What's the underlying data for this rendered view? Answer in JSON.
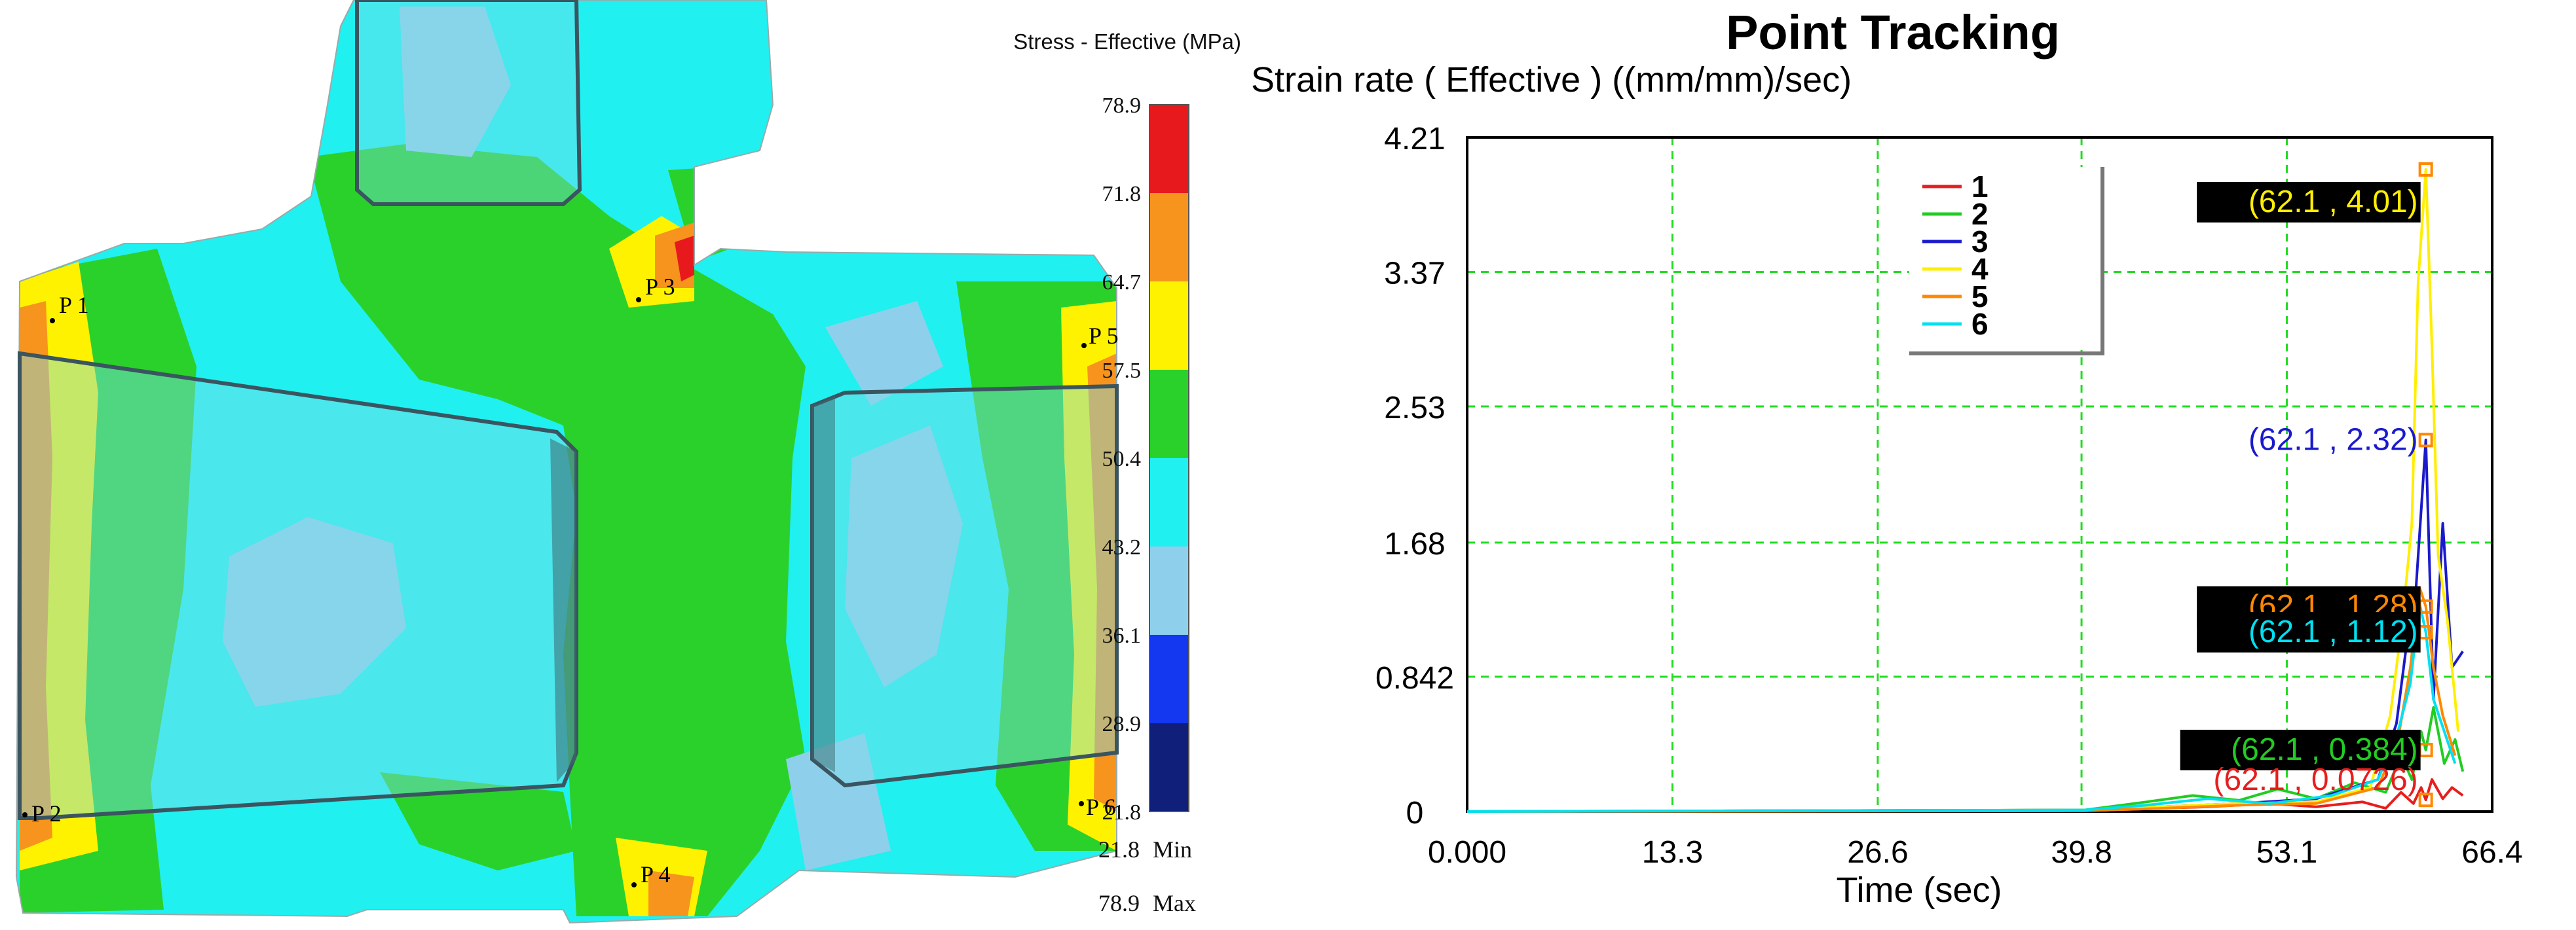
{
  "stress_map": {
    "points": [
      "P 1",
      "P 2",
      "P 3",
      "P 4",
      "P 5",
      "P 6"
    ],
    "legend": {
      "title": "Stress - Effective (MPa)",
      "ticks": [
        "78.9",
        "71.8",
        "64.7",
        "57.5",
        "50.4",
        "43.2",
        "36.1",
        "28.9",
        "21.8"
      ],
      "bands": [
        "#e8191c",
        "#f7941d",
        "#fff200",
        "#2bd12b",
        "#20f0f0",
        "#8ed0ec",
        "#1437f0",
        "#10207a"
      ],
      "min_value": "21.8",
      "min_label": "Min",
      "max_value": "78.9",
      "max_label": "Max"
    }
  },
  "chart_data": {
    "type": "line",
    "title": "Point Tracking",
    "ylabel": "Strain rate ( Effective )  ((mm/mm)/sec)",
    "xlabel": "Time (sec)",
    "xlim": [
      0,
      66.4
    ],
    "ylim": [
      0,
      4.21
    ],
    "xticks": [
      "0.000",
      "13.3",
      "26.6",
      "39.8",
      "53.1",
      "66.4"
    ],
    "xtick_values": [
      0,
      13.3,
      26.6,
      39.8,
      53.1,
      66.4
    ],
    "yticks": [
      "0",
      "0.842",
      "1.68",
      "2.53",
      "3.37",
      "4.21"
    ],
    "ytick_values": [
      0,
      0.842,
      1.68,
      2.53,
      3.37,
      4.21
    ],
    "grid": true,
    "legend_position": "top-center",
    "series": [
      {
        "name": "1",
        "color": "#e61e1e",
        "x": [
          0,
          40,
          45,
          48,
          52,
          55,
          58,
          59.5,
          60.5,
          61.3,
          61.8,
          62.1,
          62.5,
          63.2,
          63.8,
          64.5
        ],
        "y": [
          0,
          0.005,
          0.02,
          0.03,
          0.05,
          0.03,
          0.06,
          0.02,
          0.12,
          0.05,
          0.15,
          0.0726,
          0.2,
          0.08,
          0.15,
          0.1
        ]
      },
      {
        "name": "2",
        "color": "#22cc22",
        "x": [
          0,
          40,
          44,
          47,
          50,
          52.5,
          55,
          57.5,
          59.5,
          60.5,
          61.2,
          61.8,
          62.1,
          62.6,
          63.3,
          64,
          64.5
        ],
        "y": [
          0,
          0.01,
          0.06,
          0.1,
          0.07,
          0.14,
          0.08,
          0.18,
          0.12,
          0.35,
          0.2,
          0.5,
          0.384,
          0.65,
          0.3,
          0.45,
          0.25
        ]
      },
      {
        "name": "3",
        "color": "#1a1acc",
        "x": [
          0,
          40,
          45,
          50,
          55,
          59,
          60.2,
          60.8,
          61.4,
          62.1,
          62.6,
          63.2,
          63.8,
          64.5
        ],
        "y": [
          0,
          0.01,
          0.03,
          0.05,
          0.08,
          0.2,
          0.55,
          1.0,
          1.3,
          2.32,
          0.7,
          1.8,
          0.9,
          1.0
        ]
      },
      {
        "name": "4",
        "color": "#ffee00",
        "x": [
          0,
          40,
          45,
          50,
          55,
          58.5,
          59.8,
          60.6,
          61.2,
          61.6,
          62.1,
          62.5,
          62.9,
          63.5,
          64.2
        ],
        "y": [
          0,
          0.01,
          0.03,
          0.05,
          0.06,
          0.15,
          0.6,
          1.2,
          1.8,
          3.3,
          4.01,
          2.9,
          1.6,
          1.2,
          0.5
        ]
      },
      {
        "name": "5",
        "color": "#ff8800",
        "x": [
          0,
          40,
          45,
          50,
          55,
          59,
          60.3,
          61.1,
          61.7,
          62.1,
          62.6,
          63.2,
          64.0
        ],
        "y": [
          0,
          0.005,
          0.02,
          0.04,
          0.05,
          0.15,
          0.45,
          0.9,
          1.4,
          1.28,
          0.9,
          0.6,
          0.35
        ]
      },
      {
        "name": "6",
        "color": "#00e0f0",
        "x": [
          0,
          40,
          44,
          48,
          52,
          56,
          59,
          60.3,
          61.1,
          61.7,
          62.1,
          62.6,
          63.3,
          64.0
        ],
        "y": [
          0,
          0.01,
          0.04,
          0.08,
          0.05,
          0.1,
          0.2,
          0.5,
          0.8,
          1.3,
          1.12,
          0.7,
          0.5,
          0.3
        ]
      }
    ],
    "annotations": [
      {
        "text": "(62.1 , 4.01)",
        "x": 62.1,
        "y": 4.01,
        "color": "#ffee00",
        "bg": "#000000"
      },
      {
        "text": "(62.1 , 2.32)",
        "x": 62.1,
        "y": 2.32,
        "color": "#1a1acc",
        "bg": ""
      },
      {
        "text": "(62.1 , 1.28)",
        "x": 62.1,
        "y": 1.28,
        "color": "#ff8800",
        "bg": "#000000"
      },
      {
        "text": "(62.1 , 1.12)",
        "x": 62.1,
        "y": 1.12,
        "color": "#00e0f0",
        "bg": "#000000"
      },
      {
        "text": "(62.1 , 0.384)",
        "x": 62.1,
        "y": 0.384,
        "color": "#22cc22",
        "bg": "#000000"
      },
      {
        "text": "(62.1 , 0.0726)",
        "x": 62.1,
        "y": 0.0726,
        "color": "#e61e1e",
        "bg": ""
      }
    ]
  }
}
